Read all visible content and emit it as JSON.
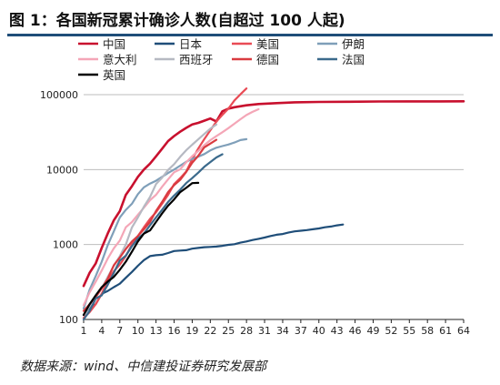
{
  "page": {
    "title": "图 1：各国新冠累计确诊人数(自超过 100 人起)",
    "source": "数据来源：wind、中信建投证券研究发展部"
  },
  "chart_data": {
    "type": "line",
    "title": "",
    "xlabel": "",
    "ylabel": "",
    "yscale": "log",
    "ylim": [
      100,
      100000
    ],
    "xlim": [
      1,
      64
    ],
    "grid": "horizontal",
    "legend_position": "top",
    "x_ticks": [
      1,
      4,
      7,
      10,
      13,
      16,
      19,
      22,
      25,
      28,
      31,
      34,
      37,
      40,
      43,
      46,
      49,
      52,
      55,
      58,
      61,
      64
    ],
    "y_ticks": [
      {
        "value": 100,
        "label": "100"
      },
      {
        "value": 1000,
        "label": "1000"
      },
      {
        "value": 10000,
        "label": "10000"
      },
      {
        "value": 100000,
        "label": "100000"
      }
    ],
    "series": [
      {
        "name": "中国",
        "color": "#c8102e",
        "width": 2.6,
        "x": [
          1,
          2,
          3,
          4,
          5,
          6,
          7,
          8,
          9,
          10,
          11,
          12,
          13,
          14,
          15,
          16,
          17,
          18,
          19,
          20,
          21,
          22,
          23,
          24,
          25,
          26,
          28,
          30,
          33,
          36,
          40,
          45,
          50,
          55,
          60,
          64
        ],
        "values": [
          280,
          420,
          560,
          900,
          1400,
          2100,
          2800,
          4600,
          6000,
          8000,
          10000,
          12000,
          15000,
          19000,
          24000,
          28000,
          32000,
          36000,
          40000,
          42000,
          45000,
          48000,
          44000,
          60000,
          65000,
          68000,
          72000,
          75000,
          77000,
          79000,
          80000,
          80500,
          81000,
          81200,
          81400,
          81500
        ]
      },
      {
        "name": "日本",
        "color": "#1f4e79",
        "width": 2.2,
        "x": [
          1,
          2,
          3,
          4,
          5,
          6,
          7,
          8,
          9,
          10,
          11,
          12,
          13,
          14,
          15,
          16,
          17,
          18,
          19,
          20,
          21,
          22,
          23,
          24,
          25,
          26,
          27,
          28,
          29,
          30,
          31,
          32,
          33,
          34,
          35,
          36,
          37,
          38,
          39,
          40,
          41,
          42,
          43,
          44
        ],
        "values": [
          115,
          145,
          160,
          220,
          240,
          270,
          300,
          360,
          430,
          520,
          620,
          700,
          720,
          730,
          770,
          820,
          830,
          840,
          880,
          900,
          920,
          930,
          940,
          960,
          990,
          1010,
          1060,
          1100,
          1150,
          1190,
          1240,
          1300,
          1350,
          1380,
          1450,
          1500,
          1530,
          1560,
          1600,
          1640,
          1700,
          1740,
          1800,
          1850
        ]
      },
      {
        "name": "美国",
        "color": "#e94b55",
        "width": 2.2,
        "x": [
          1,
          2,
          3,
          4,
          5,
          6,
          7,
          8,
          9,
          10,
          11,
          12,
          13,
          14,
          15,
          16,
          17,
          18,
          19,
          20,
          21,
          22,
          23,
          24,
          25,
          26,
          27,
          28
        ],
        "values": [
          105,
          125,
          160,
          220,
          330,
          440,
          540,
          700,
          1000,
          1300,
          1700,
          2200,
          2700,
          3500,
          4600,
          6400,
          7700,
          9400,
          13700,
          19100,
          25500,
          33300,
          43700,
          53700,
          65000,
          83800,
          101000,
          121000
        ]
      },
      {
        "name": "伊朗",
        "color": "#7f9fb9",
        "width": 2.2,
        "x": [
          1,
          2,
          3,
          4,
          5,
          6,
          7,
          8,
          9,
          10,
          11,
          12,
          13,
          14,
          15,
          16,
          17,
          18,
          19,
          20,
          21,
          22,
          23,
          24,
          25,
          26,
          27,
          28
        ],
        "values": [
          140,
          250,
          380,
          590,
          980,
          1500,
          2300,
          2900,
          3500,
          4700,
          5800,
          6500,
          7100,
          8000,
          9000,
          10000,
          11300,
          12700,
          13900,
          14900,
          16100,
          18000,
          19600,
          20600,
          21600,
          23000,
          24800,
          25500
        ]
      },
      {
        "name": "意大利",
        "color": "#f4a6b7",
        "width": 2.2,
        "x": [
          1,
          2,
          3,
          4,
          5,
          6,
          7,
          8,
          9,
          10,
          11,
          12,
          13,
          14,
          15,
          16,
          17,
          18,
          19,
          20,
          21,
          22,
          23,
          24,
          25,
          26,
          27,
          28,
          29,
          30
        ],
        "values": [
          155,
          230,
          320,
          450,
          650,
          890,
          1130,
          1700,
          2000,
          2500,
          3100,
          3900,
          4600,
          5900,
          7400,
          9200,
          10100,
          12500,
          15100,
          17700,
          21200,
          24700,
          27900,
          31500,
          35700,
          41000,
          47000,
          53500,
          59000,
          63900
        ]
      },
      {
        "name": "西班牙",
        "color": "#b6b9c2",
        "width": 2.2,
        "x": [
          1,
          2,
          3,
          4,
          5,
          6,
          7,
          8,
          9,
          10,
          11,
          12,
          13,
          14,
          15,
          16,
          17,
          18,
          19,
          20,
          21,
          22,
          23
        ],
        "values": [
          115,
          150,
          200,
          260,
          370,
          520,
          700,
          1000,
          1690,
          2300,
          3200,
          4300,
          6400,
          7800,
          9900,
          11800,
          14800,
          18100,
          21500,
          25300,
          29900,
          35100,
          40000
        ]
      },
      {
        "name": "德国",
        "color": "#d93b40",
        "width": 2.2,
        "x": [
          1,
          2,
          3,
          4,
          5,
          6,
          7,
          8,
          9,
          10,
          11,
          12,
          13,
          14,
          15,
          16,
          17,
          18,
          19,
          20,
          21,
          22,
          23
        ],
        "values": [
          130,
          160,
          200,
          260,
          350,
          530,
          670,
          870,
          1100,
          1300,
          1600,
          2000,
          2800,
          3700,
          5000,
          6200,
          7300,
          9300,
          12300,
          15300,
          19800,
          22200,
          25000
        ]
      },
      {
        "name": "法国",
        "color": "#3b6a8c",
        "width": 2.2,
        "x": [
          1,
          2,
          3,
          4,
          5,
          6,
          7,
          8,
          9,
          10,
          11,
          12,
          13,
          14,
          15,
          16,
          17,
          18,
          19,
          20,
          21,
          22,
          23,
          24
        ],
        "values": [
          100,
          130,
          190,
          210,
          290,
          420,
          610,
          710,
          950,
          1200,
          1400,
          1800,
          2300,
          2900,
          3700,
          4500,
          5400,
          6600,
          7700,
          9100,
          10900,
          12600,
          14500,
          16000
        ]
      },
      {
        "name": "英国",
        "color": "#000000",
        "width": 2.2,
        "x": [
          1,
          2,
          3,
          4,
          5,
          6,
          7,
          8,
          9,
          10,
          11,
          12,
          13,
          14,
          15,
          16,
          17,
          18,
          19,
          20
        ],
        "values": [
          115,
          160,
          210,
          270,
          320,
          370,
          460,
          590,
          800,
          1100,
          1400,
          1540,
          2000,
          2600,
          3300,
          4000,
          5000,
          5700,
          6600,
          6650
        ]
      }
    ]
  }
}
